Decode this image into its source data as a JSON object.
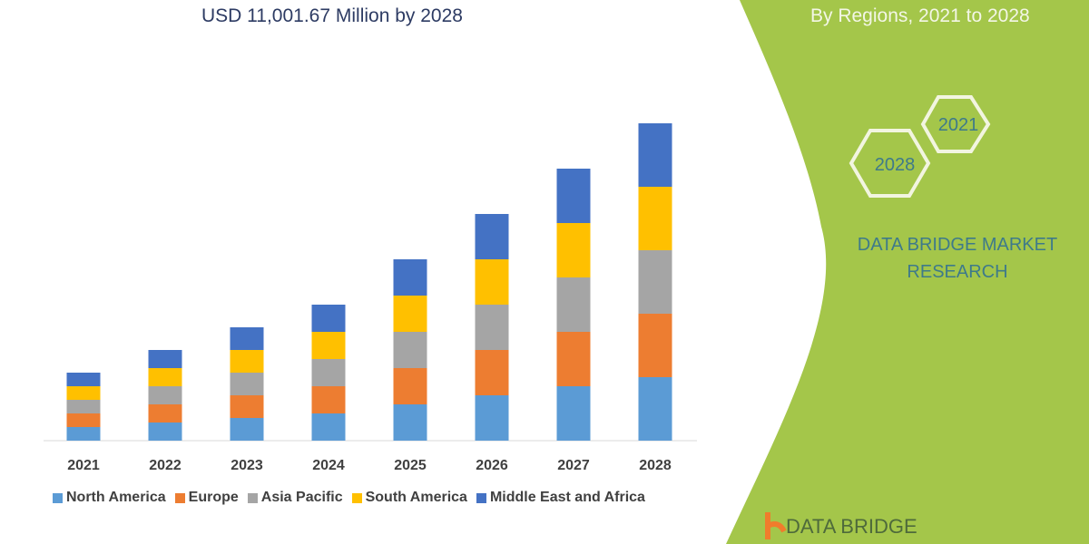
{
  "header": {
    "subtitle": "USD 11,001.67 Million by 2028",
    "right_title": "By Regions, 2021 to 2028"
  },
  "hexagons": [
    "2028",
    "2021"
  ],
  "brand": {
    "line1": "DATA BRIDGE MARKET",
    "line2": "RESEARCH",
    "logo_text": "DATA BRIDGE"
  },
  "colors": {
    "green_panel": "#a4c64a",
    "axis": "#d9d9d9"
  },
  "chart_data": {
    "type": "bar",
    "stacked": true,
    "grid": false,
    "legend": "bottom",
    "categories": [
      "2021",
      "2022",
      "2023",
      "2024",
      "2025",
      "2026",
      "2027",
      "2028"
    ],
    "series": [
      {
        "name": "North America",
        "color": "#5b9bd5",
        "values": [
          15,
          20,
          25,
          30,
          40,
          50,
          60,
          70
        ]
      },
      {
        "name": "Europe",
        "color": "#ed7d31",
        "values": [
          15,
          20,
          25,
          30,
          40,
          50,
          60,
          70
        ]
      },
      {
        "name": "Asia Pacific",
        "color": "#a5a5a5",
        "values": [
          15,
          20,
          25,
          30,
          40,
          50,
          60,
          70
        ]
      },
      {
        "name": "South America",
        "color": "#ffc000",
        "values": [
          15,
          20,
          25,
          30,
          40,
          50,
          60,
          70
        ]
      },
      {
        "name": "Middle East and Africa",
        "color": "#4472c4",
        "values": [
          15,
          20,
          25,
          30,
          40,
          50,
          60,
          70
        ]
      }
    ]
  }
}
